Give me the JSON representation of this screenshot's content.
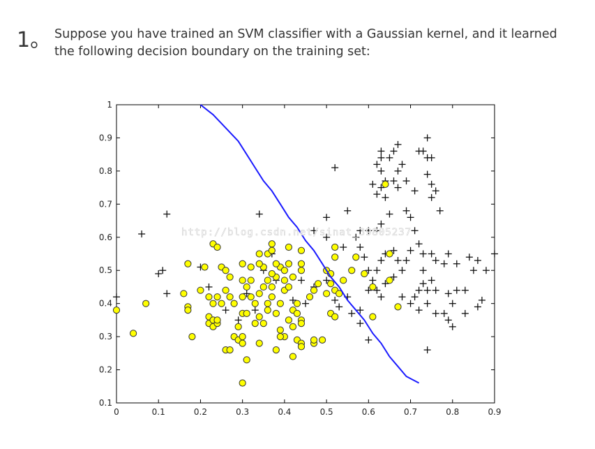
{
  "question": {
    "number": "1。",
    "text": "Suppose you have trained an SVM classifier with a Gaussian kernel, and it learned the following decision boundary on the training set:"
  },
  "watermark": "http://blog.csdn.net/sinat_39805237",
  "chart_data": {
    "type": "scatter",
    "title": "",
    "xlabel": "",
    "ylabel": "",
    "xlim": [
      0,
      0.9
    ],
    "ylim": [
      0.1,
      1
    ],
    "xticks": [
      "0",
      "0.1",
      "0.2",
      "0.3",
      "0.4",
      "0.5",
      "0.6",
      "0.7",
      "0.8",
      "0.9"
    ],
    "yticks": [
      "0.1",
      "0.2",
      "0.3",
      "0.4",
      "0.5",
      "0.6",
      "0.7",
      "0.8",
      "0.9",
      "1"
    ],
    "grid": false,
    "colors": {
      "circle_fill": "#ffff00",
      "circle_edge": "#333333",
      "plus": "#111111",
      "boundary": "#1a1aff"
    },
    "series": [
      {
        "marker": "plus",
        "points": [
          [
            0.06,
            0.61
          ],
          [
            0.12,
            0.67
          ],
          [
            0.1,
            0.49
          ],
          [
            0.11,
            0.5
          ],
          [
            0.12,
            0.43
          ],
          [
            0.0,
            0.42
          ],
          [
            0.2,
            0.51
          ],
          [
            0.22,
            0.45
          ],
          [
            0.26,
            0.38
          ],
          [
            0.28,
            0.4
          ],
          [
            0.31,
            0.43
          ],
          [
            0.33,
            0.38
          ],
          [
            0.29,
            0.35
          ],
          [
            0.35,
            0.5
          ],
          [
            0.38,
            0.47
          ],
          [
            0.4,
            0.44
          ],
          [
            0.42,
            0.41
          ],
          [
            0.45,
            0.4
          ],
          [
            0.44,
            0.47
          ],
          [
            0.47,
            0.45
          ],
          [
            0.5,
            0.47
          ],
          [
            0.52,
            0.41
          ],
          [
            0.53,
            0.39
          ],
          [
            0.55,
            0.42
          ],
          [
            0.56,
            0.37
          ],
          [
            0.58,
            0.34
          ],
          [
            0.6,
            0.29
          ],
          [
            0.34,
            0.67
          ],
          [
            0.37,
            0.55
          ],
          [
            0.47,
            0.62
          ],
          [
            0.5,
            0.6
          ],
          [
            0.52,
            0.57
          ],
          [
            0.54,
            0.57
          ],
          [
            0.5,
            0.66
          ],
          [
            0.55,
            0.68
          ],
          [
            0.58,
            0.62
          ],
          [
            0.6,
            0.62
          ],
          [
            0.62,
            0.62
          ],
          [
            0.63,
            0.64
          ],
          [
            0.62,
            0.73
          ],
          [
            0.63,
            0.75
          ],
          [
            0.64,
            0.77
          ],
          [
            0.63,
            0.8
          ],
          [
            0.62,
            0.82
          ],
          [
            0.63,
            0.84
          ],
          [
            0.63,
            0.86
          ],
          [
            0.65,
            0.84
          ],
          [
            0.66,
            0.86
          ],
          [
            0.67,
            0.88
          ],
          [
            0.68,
            0.82
          ],
          [
            0.67,
            0.8
          ],
          [
            0.66,
            0.77
          ],
          [
            0.67,
            0.75
          ],
          [
            0.69,
            0.77
          ],
          [
            0.71,
            0.74
          ],
          [
            0.72,
            0.86
          ],
          [
            0.73,
            0.86
          ],
          [
            0.74,
            0.84
          ],
          [
            0.75,
            0.84
          ],
          [
            0.74,
            0.79
          ],
          [
            0.75,
            0.76
          ],
          [
            0.76,
            0.74
          ],
          [
            0.75,
            0.72
          ],
          [
            0.77,
            0.68
          ],
          [
            0.74,
            0.9
          ],
          [
            0.52,
            0.81
          ],
          [
            0.61,
            0.76
          ],
          [
            0.64,
            0.72
          ],
          [
            0.65,
            0.67
          ],
          [
            0.69,
            0.68
          ],
          [
            0.7,
            0.66
          ],
          [
            0.71,
            0.62
          ],
          [
            0.72,
            0.58
          ],
          [
            0.7,
            0.56
          ],
          [
            0.69,
            0.53
          ],
          [
            0.68,
            0.5
          ],
          [
            0.66,
            0.48
          ],
          [
            0.63,
            0.53
          ],
          [
            0.62,
            0.5
          ],
          [
            0.64,
            0.46
          ],
          [
            0.62,
            0.44
          ],
          [
            0.63,
            0.42
          ],
          [
            0.61,
            0.47
          ],
          [
            0.6,
            0.5
          ],
          [
            0.59,
            0.54
          ],
          [
            0.58,
            0.57
          ],
          [
            0.57,
            0.6
          ],
          [
            0.64,
            0.55
          ],
          [
            0.66,
            0.56
          ],
          [
            0.67,
            0.53
          ],
          [
            0.73,
            0.55
          ],
          [
            0.75,
            0.55
          ],
          [
            0.76,
            0.53
          ],
          [
            0.78,
            0.52
          ],
          [
            0.79,
            0.55
          ],
          [
            0.81,
            0.52
          ],
          [
            0.84,
            0.54
          ],
          [
            0.86,
            0.53
          ],
          [
            0.88,
            0.5
          ],
          [
            0.9,
            0.55
          ],
          [
            0.73,
            0.5
          ],
          [
            0.75,
            0.47
          ],
          [
            0.74,
            0.44
          ],
          [
            0.73,
            0.46
          ],
          [
            0.72,
            0.44
          ],
          [
            0.7,
            0.4
          ],
          [
            0.71,
            0.42
          ],
          [
            0.68,
            0.42
          ],
          [
            0.67,
            0.39
          ],
          [
            0.72,
            0.38
          ],
          [
            0.74,
            0.4
          ],
          [
            0.76,
            0.44
          ],
          [
            0.79,
            0.43
          ],
          [
            0.81,
            0.44
          ],
          [
            0.83,
            0.44
          ],
          [
            0.8,
            0.4
          ],
          [
            0.76,
            0.37
          ],
          [
            0.78,
            0.37
          ],
          [
            0.79,
            0.35
          ],
          [
            0.8,
            0.33
          ],
          [
            0.83,
            0.37
          ],
          [
            0.86,
            0.39
          ],
          [
            0.87,
            0.41
          ],
          [
            0.74,
            0.26
          ],
          [
            0.85,
            0.5
          ],
          [
            0.6,
            0.44
          ],
          [
            0.58,
            0.38
          ]
        ]
      },
      {
        "marker": "circle",
        "points": [
          [
            0.0,
            0.38
          ],
          [
            0.04,
            0.31
          ],
          [
            0.07,
            0.4
          ],
          [
            0.17,
            0.52
          ],
          [
            0.16,
            0.43
          ],
          [
            0.17,
            0.39
          ],
          [
            0.17,
            0.38
          ],
          [
            0.18,
            0.3
          ],
          [
            0.2,
            0.44
          ],
          [
            0.21,
            0.51
          ],
          [
            0.22,
            0.34
          ],
          [
            0.22,
            0.36
          ],
          [
            0.23,
            0.33
          ],
          [
            0.23,
            0.35
          ],
          [
            0.24,
            0.34
          ],
          [
            0.24,
            0.35
          ],
          [
            0.25,
            0.4
          ],
          [
            0.22,
            0.42
          ],
          [
            0.23,
            0.4
          ],
          [
            0.24,
            0.42
          ],
          [
            0.25,
            0.51
          ],
          [
            0.26,
            0.5
          ],
          [
            0.27,
            0.48
          ],
          [
            0.26,
            0.44
          ],
          [
            0.27,
            0.42
          ],
          [
            0.28,
            0.4
          ],
          [
            0.26,
            0.26
          ],
          [
            0.27,
            0.26
          ],
          [
            0.28,
            0.3
          ],
          [
            0.29,
            0.29
          ],
          [
            0.3,
            0.3
          ],
          [
            0.3,
            0.28
          ],
          [
            0.3,
            0.16
          ],
          [
            0.31,
            0.23
          ],
          [
            0.29,
            0.33
          ],
          [
            0.3,
            0.37
          ],
          [
            0.31,
            0.37
          ],
          [
            0.3,
            0.42
          ],
          [
            0.31,
            0.45
          ],
          [
            0.32,
            0.47
          ],
          [
            0.3,
            0.47
          ],
          [
            0.32,
            0.42
          ],
          [
            0.33,
            0.4
          ],
          [
            0.34,
            0.43
          ],
          [
            0.35,
            0.45
          ],
          [
            0.36,
            0.47
          ],
          [
            0.37,
            0.45
          ],
          [
            0.33,
            0.34
          ],
          [
            0.34,
            0.36
          ],
          [
            0.35,
            0.34
          ],
          [
            0.34,
            0.28
          ],
          [
            0.36,
            0.38
          ],
          [
            0.36,
            0.4
          ],
          [
            0.37,
            0.42
          ],
          [
            0.38,
            0.37
          ],
          [
            0.39,
            0.4
          ],
          [
            0.4,
            0.44
          ],
          [
            0.41,
            0.45
          ],
          [
            0.4,
            0.47
          ],
          [
            0.38,
            0.48
          ],
          [
            0.39,
            0.51
          ],
          [
            0.4,
            0.5
          ],
          [
            0.41,
            0.52
          ],
          [
            0.42,
            0.48
          ],
          [
            0.38,
            0.52
          ],
          [
            0.37,
            0.49
          ],
          [
            0.36,
            0.55
          ],
          [
            0.37,
            0.56
          ],
          [
            0.37,
            0.58
          ],
          [
            0.35,
            0.51
          ],
          [
            0.34,
            0.52
          ],
          [
            0.32,
            0.51
          ],
          [
            0.3,
            0.52
          ],
          [
            0.23,
            0.58
          ],
          [
            0.24,
            0.57
          ],
          [
            0.34,
            0.55
          ],
          [
            0.41,
            0.57
          ],
          [
            0.44,
            0.56
          ],
          [
            0.44,
            0.52
          ],
          [
            0.44,
            0.5
          ],
          [
            0.42,
            0.38
          ],
          [
            0.43,
            0.4
          ],
          [
            0.43,
            0.37
          ],
          [
            0.44,
            0.35
          ],
          [
            0.44,
            0.34
          ],
          [
            0.42,
            0.33
          ],
          [
            0.41,
            0.35
          ],
          [
            0.4,
            0.3
          ],
          [
            0.39,
            0.32
          ],
          [
            0.39,
            0.3
          ],
          [
            0.38,
            0.26
          ],
          [
            0.42,
            0.24
          ],
          [
            0.43,
            0.29
          ],
          [
            0.44,
            0.28
          ],
          [
            0.44,
            0.27
          ],
          [
            0.47,
            0.28
          ],
          [
            0.47,
            0.29
          ],
          [
            0.49,
            0.29
          ],
          [
            0.46,
            0.42
          ],
          [
            0.47,
            0.44
          ],
          [
            0.48,
            0.46
          ],
          [
            0.5,
            0.43
          ],
          [
            0.51,
            0.46
          ],
          [
            0.5,
            0.5
          ],
          [
            0.51,
            0.49
          ],
          [
            0.51,
            0.37
          ],
          [
            0.52,
            0.36
          ],
          [
            0.52,
            0.44
          ],
          [
            0.53,
            0.43
          ],
          [
            0.54,
            0.47
          ],
          [
            0.52,
            0.54
          ],
          [
            0.52,
            0.57
          ],
          [
            0.56,
            0.5
          ],
          [
            0.57,
            0.54
          ],
          [
            0.59,
            0.49
          ],
          [
            0.61,
            0.45
          ],
          [
            0.61,
            0.36
          ],
          [
            0.65,
            0.47
          ],
          [
            0.65,
            0.55
          ],
          [
            0.67,
            0.39
          ],
          [
            0.64,
            0.76
          ]
        ]
      }
    ],
    "decision_boundary": [
      [
        0.2,
        1.0
      ],
      [
        0.23,
        0.97
      ],
      [
        0.26,
        0.93
      ],
      [
        0.29,
        0.89
      ],
      [
        0.31,
        0.85
      ],
      [
        0.33,
        0.81
      ],
      [
        0.35,
        0.77
      ],
      [
        0.37,
        0.74
      ],
      [
        0.39,
        0.7
      ],
      [
        0.41,
        0.66
      ],
      [
        0.43,
        0.63
      ],
      [
        0.45,
        0.59
      ],
      [
        0.47,
        0.56
      ],
      [
        0.49,
        0.52
      ],
      [
        0.51,
        0.48
      ],
      [
        0.53,
        0.45
      ],
      [
        0.55,
        0.41
      ],
      [
        0.57,
        0.38
      ],
      [
        0.59,
        0.35
      ],
      [
        0.61,
        0.31
      ],
      [
        0.63,
        0.28
      ],
      [
        0.65,
        0.24
      ],
      [
        0.67,
        0.21
      ],
      [
        0.69,
        0.18
      ],
      [
        0.72,
        0.16
      ]
    ]
  }
}
